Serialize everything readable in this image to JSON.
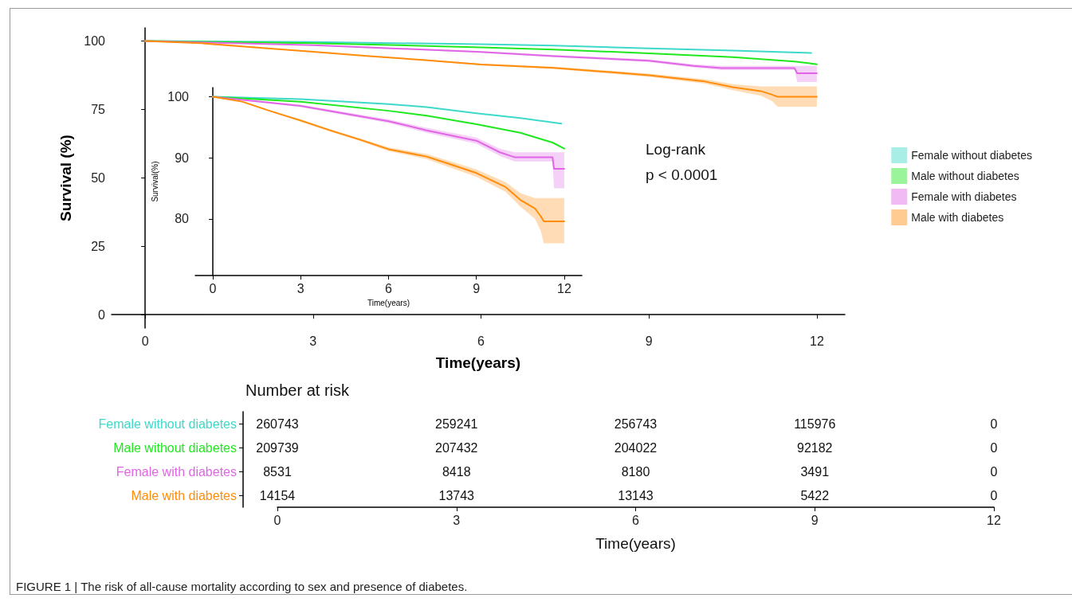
{
  "chart_data": [
    {
      "type": "line",
      "xlabel": "Time(years)",
      "ylabel": "Survival (%)",
      "xlim": [
        -0.6,
        12.5
      ],
      "xticks": [
        0,
        3,
        6,
        9,
        12
      ],
      "ylim": [
        -4.9,
        104.8
      ],
      "yticks": [
        0,
        25,
        50,
        75,
        100
      ],
      "legend": "right",
      "annotations": [
        "Log-rank",
        "p < 0.0001"
      ],
      "series": [
        {
          "name": "Female without diabetes",
          "color": "#3dd9c9",
          "x": [
            0,
            3,
            6,
            7.3,
            9,
            10.5,
            11.9
          ],
          "values": [
            100,
            99.6,
            98.8,
            98.3,
            97.3,
            96.5,
            95.6
          ]
        },
        {
          "name": "Male without diabetes",
          "color": "#1fe81f",
          "x": [
            0,
            3,
            6,
            7.3,
            9,
            10.5,
            11.6,
            12
          ],
          "values": [
            100,
            99.2,
            97.7,
            96.9,
            95.5,
            94.1,
            92.5,
            91.5
          ]
        },
        {
          "name": "Female with diabetes",
          "color": "#e066e6",
          "x": [
            0,
            3,
            6,
            7.3,
            9,
            9.8,
            10.3,
            11.6,
            11.65,
            12
          ],
          "values": [
            100,
            98.5,
            96,
            94.5,
            92.8,
            90.9,
            90.1,
            90.1,
            88.2,
            88.2
          ],
          "lower": [
            100,
            98.3,
            95.7,
            94.1,
            92.3,
            90.3,
            89.4,
            89.4,
            85,
            85
          ],
          "upper": [
            100,
            98.7,
            96.3,
            94.9,
            93.3,
            91.5,
            90.9,
            90.9,
            90.9,
            90.9
          ]
        },
        {
          "name": "Male with diabetes",
          "color": "#ff8c0a",
          "x": [
            0,
            1,
            2,
            3,
            4,
            5,
            6,
            7.3,
            8,
            9,
            10,
            10.5,
            11,
            11.2,
            11.3,
            12
          ],
          "values": [
            100,
            99.2,
            97.6,
            96.1,
            94.5,
            93,
            91.4,
            90.2,
            89.1,
            87.5,
            85.2,
            83.1,
            81.7,
            80.4,
            79.6,
            79.6
          ],
          "lower": [
            100,
            99.1,
            97.5,
            95.9,
            94.3,
            92.8,
            91.1,
            89.8,
            88.6,
            86.9,
            84.4,
            82,
            80,
            78,
            76,
            76
          ],
          "upper": [
            100,
            99.3,
            97.7,
            96.3,
            94.7,
            93.2,
            91.7,
            90.6,
            89.6,
            88.1,
            86,
            84.2,
            83.4,
            83.4,
            83.4,
            83.4
          ]
        }
      ]
    },
    {
      "type": "line",
      "xlabel": "Time(years)",
      "ylabel": "Survival(%)",
      "xlim": [
        -0.6,
        12.6
      ],
      "xticks": [
        0,
        3,
        6,
        9,
        12
      ],
      "ylim": [
        70.7,
        101.5
      ],
      "yticks": [
        80,
        90,
        100
      ],
      "series": [
        {
          "color": "#3dd9c9",
          "x": [
            0,
            3,
            6,
            7.3,
            9,
            10.5,
            11.9
          ],
          "values": [
            100,
            99.6,
            98.8,
            98.3,
            97.3,
            96.5,
            95.6
          ]
        },
        {
          "color": "#1fe81f",
          "x": [
            0,
            3,
            6,
            7.3,
            9,
            10.5,
            11.6,
            12
          ],
          "values": [
            100,
            99.2,
            97.7,
            96.9,
            95.5,
            94.1,
            92.5,
            91.5
          ]
        },
        {
          "color": "#e066e6",
          "x": [
            0,
            3,
            6,
            7.3,
            9,
            9.8,
            10.3,
            11.6,
            11.65,
            12
          ],
          "values": [
            100,
            98.5,
            96,
            94.5,
            92.8,
            90.9,
            90.1,
            90.1,
            88.2,
            88.2
          ],
          "lower": [
            100,
            98.3,
            95.7,
            94.1,
            92.3,
            90.3,
            89.4,
            89.4,
            85,
            85
          ],
          "upper": [
            100,
            98.7,
            96.3,
            94.9,
            93.3,
            91.5,
            90.9,
            90.9,
            90.9,
            90.9
          ]
        },
        {
          "color": "#ff8c0a",
          "x": [
            0,
            1,
            2,
            3,
            4,
            5,
            6,
            7.3,
            8,
            9,
            10,
            10.5,
            11,
            11.2,
            11.3,
            12
          ],
          "values": [
            100,
            99.2,
            97.6,
            96.1,
            94.5,
            93,
            91.4,
            90.2,
            89.1,
            87.5,
            85.2,
            83.1,
            81.7,
            80.4,
            79.6,
            79.6
          ],
          "lower": [
            100,
            99.1,
            97.5,
            95.9,
            94.3,
            92.8,
            91.1,
            89.8,
            88.6,
            86.9,
            84.4,
            82,
            80,
            78,
            76,
            76
          ],
          "upper": [
            100,
            99.3,
            97.7,
            96.3,
            94.7,
            93.2,
            91.7,
            90.6,
            89.6,
            88.1,
            86,
            84.2,
            83.4,
            83.4,
            83.4,
            83.4
          ]
        }
      ]
    },
    {
      "type": "heatmap",
      "title": "Number at risk",
      "xlabel": "Time(years)",
      "data_labels": true,
      "categories": [
        "0",
        "3",
        "6",
        "9",
        "12"
      ],
      "y_categories": [
        "Female without diabetes",
        "Male without diabetes",
        "Female with diabetes",
        "Male with diabetes"
      ],
      "cells": [
        [
          260743,
          259241,
          256743,
          115976,
          0
        ],
        [
          209739,
          207432,
          204022,
          92182,
          0
        ],
        [
          8531,
          8418,
          8180,
          3491,
          0
        ],
        [
          14154,
          13743,
          13143,
          5422,
          0
        ]
      ],
      "annotations": [
        "FIGURE 1 | The risk of all-cause mortality according to sex and presence of diabetes."
      ]
    }
  ]
}
